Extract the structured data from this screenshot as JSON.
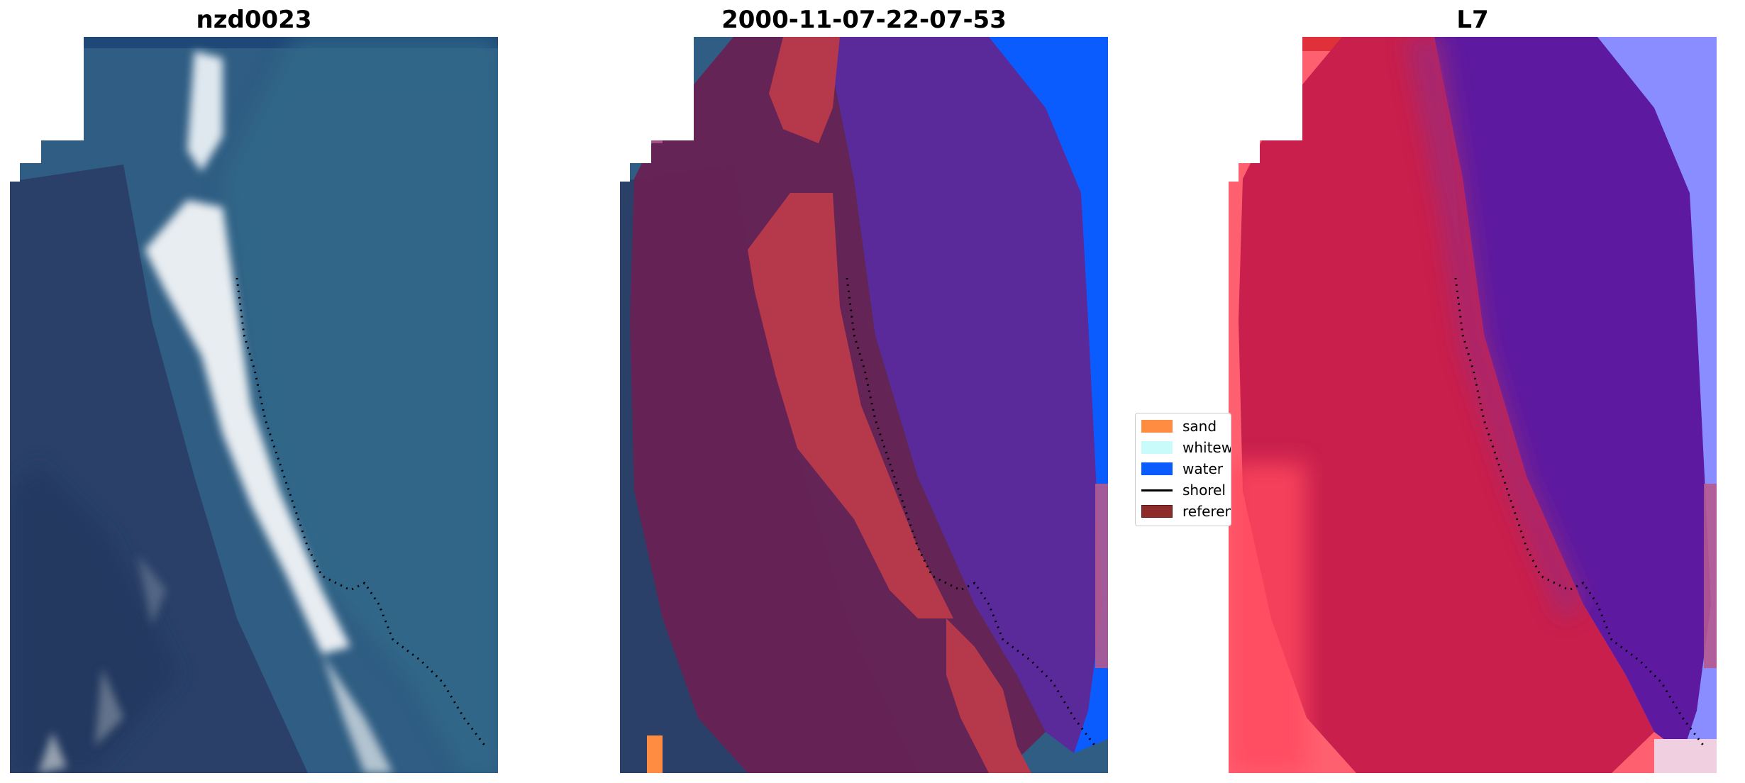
{
  "titles": {
    "rgb": "nzd0023",
    "classification": "2000-11-07-22-07-53",
    "index": "L7"
  },
  "legend": {
    "items": [
      {
        "label": "sand",
        "kind": "patch",
        "color": "#ff8c40"
      },
      {
        "label": "whitew",
        "kind": "patch",
        "color": "#c8fbfa"
      },
      {
        "label": "water",
        "kind": "patch",
        "color": "#0b5cff"
      },
      {
        "label": "shorel",
        "kind": "line",
        "color": "#000000"
      },
      {
        "label": "referen",
        "kind": "patch",
        "color": "#8e2b2b"
      }
    ]
  },
  "colors": {
    "ocean": "#2f5d83",
    "deep_ocean": "#1f4876",
    "land": "#2a4068",
    "surf": "#e6eef2",
    "class_land_overlay": "#6a1f52",
    "class_sand_overlay": "#b5384b",
    "class_water_overlay": "#5a2a9a",
    "class_water": "#0b5cff",
    "index_land": "#c81f4c",
    "index_water": "#5d1aa0",
    "index_ocean": "#8a8dff",
    "index_outer": "#ff6070",
    "shoreline": "#000000"
  }
}
